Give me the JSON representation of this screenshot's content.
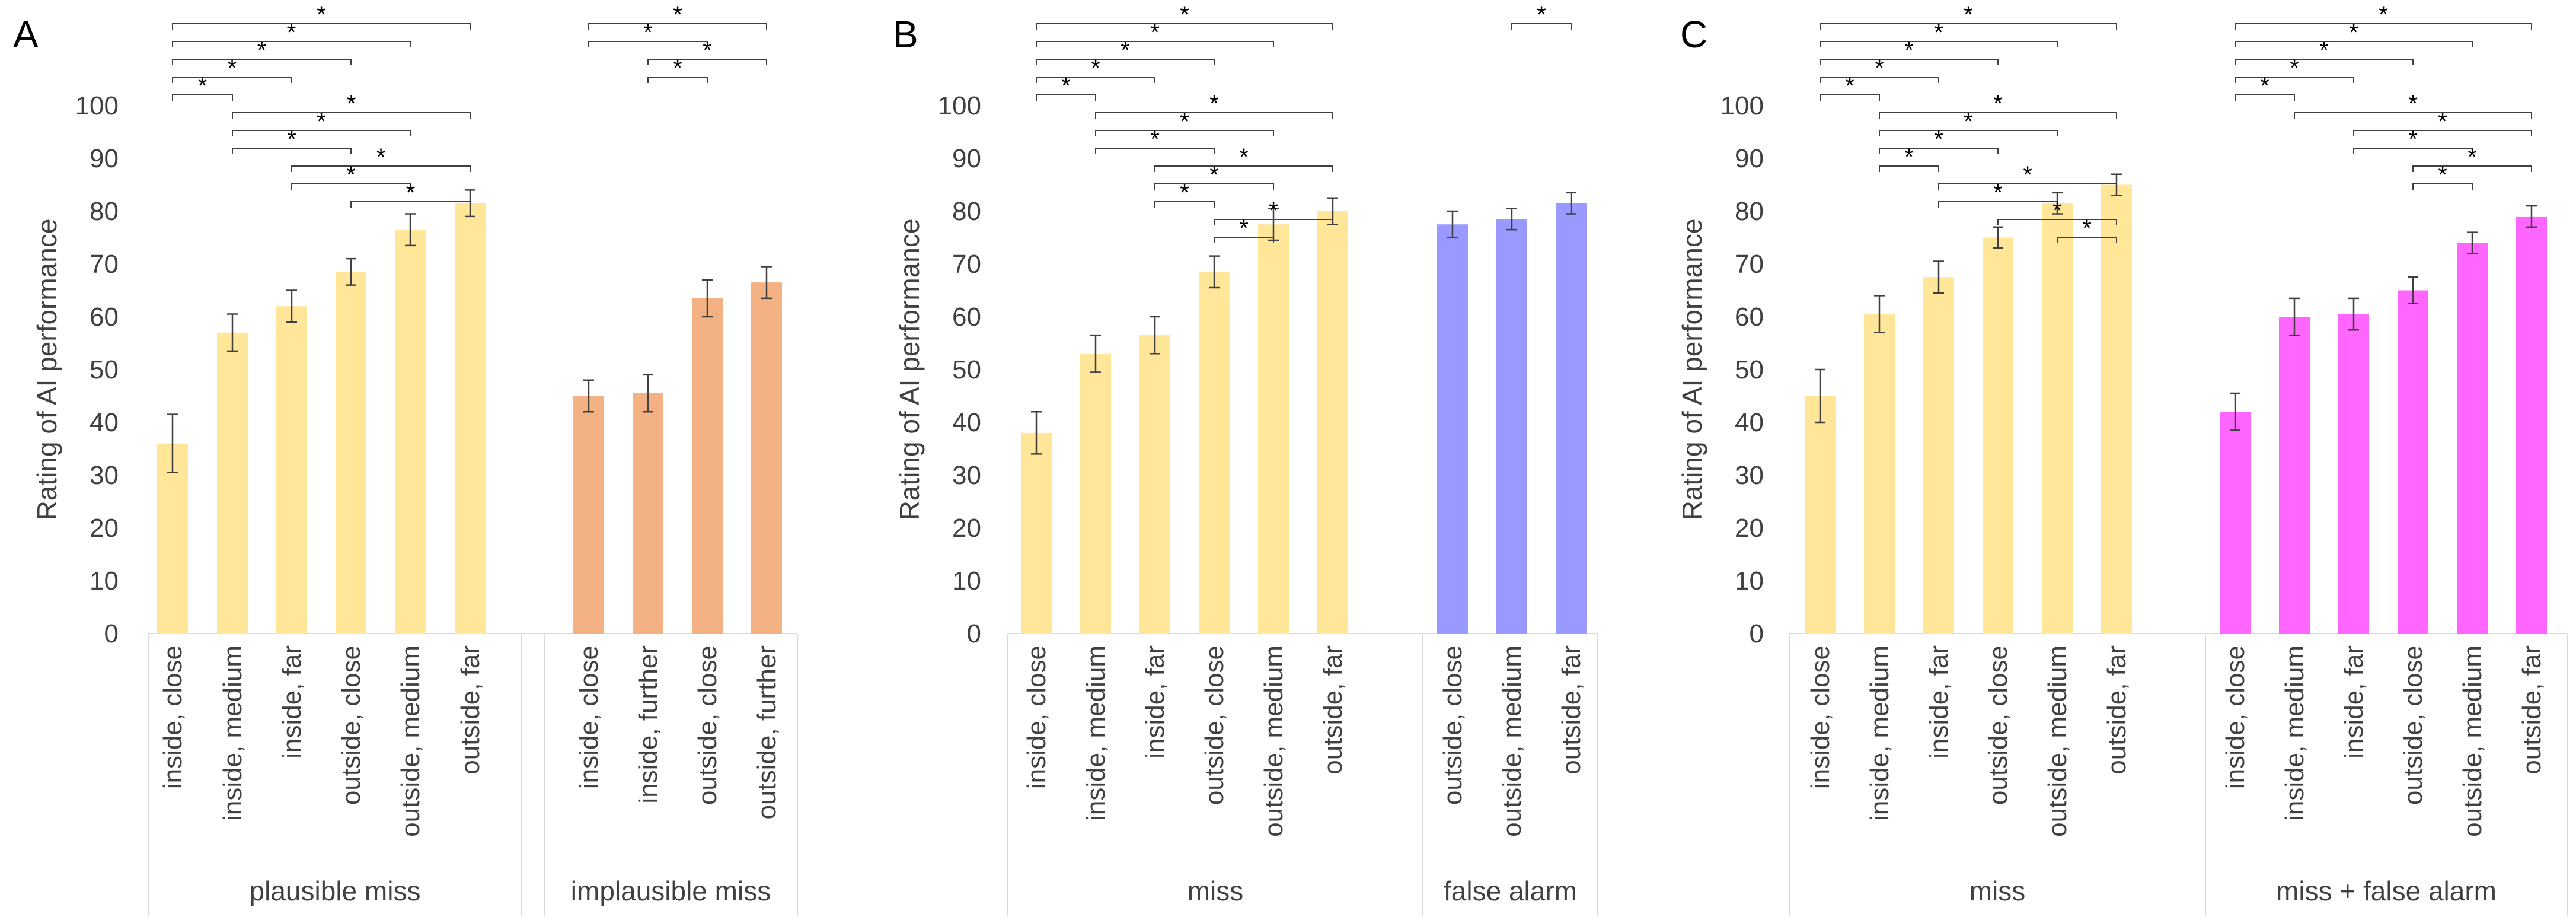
{
  "chart_data": [
    {
      "type": "bar",
      "panel": "A",
      "ylabel": "Rating of AI performance",
      "ylim": [
        0,
        100
      ],
      "yticks": [
        0,
        10,
        20,
        30,
        40,
        50,
        60,
        70,
        80,
        90,
        100
      ],
      "groups": [
        {
          "label": "plausible miss",
          "color": "#FFE699",
          "categories": [
            "inside, close",
            "inside, medium",
            "inside, far",
            "outside, close",
            "outside, medium",
            "outside, far"
          ],
          "values": [
            36,
            57,
            62,
            68.5,
            76.5,
            81.5
          ],
          "errors": [
            5.5,
            3.5,
            3,
            2.5,
            3,
            2.5
          ]
        },
        {
          "label": "implausible miss",
          "color": "#F4B183",
          "categories": [
            "inside, close",
            "inside, further",
            "outside, close",
            "outside, further"
          ],
          "values": [
            45,
            45.5,
            63.5,
            66.5
          ],
          "errors": [
            3,
            3.5,
            3.5,
            3
          ]
        }
      ],
      "significance": [
        {
          "from": [
            0,
            0
          ],
          "to": [
            0,
            5
          ],
          "label": "*"
        },
        {
          "from": [
            0,
            0
          ],
          "to": [
            0,
            4
          ],
          "label": "*"
        },
        {
          "from": [
            0,
            0
          ],
          "to": [
            0,
            3
          ],
          "label": "*"
        },
        {
          "from": [
            0,
            0
          ],
          "to": [
            0,
            2
          ],
          "label": "*"
        },
        {
          "from": [
            0,
            0
          ],
          "to": [
            0,
            1
          ],
          "label": "*"
        },
        {
          "from": [
            0,
            1
          ],
          "to": [
            0,
            5
          ],
          "label": "*"
        },
        {
          "from": [
            0,
            1
          ],
          "to": [
            0,
            4
          ],
          "label": "*"
        },
        {
          "from": [
            0,
            1
          ],
          "to": [
            0,
            3
          ],
          "label": "*"
        },
        {
          "from": [
            0,
            2
          ],
          "to": [
            0,
            5
          ],
          "label": "*"
        },
        {
          "from": [
            0,
            2
          ],
          "to": [
            0,
            4
          ],
          "label": "*"
        },
        {
          "from": [
            0,
            3
          ],
          "to": [
            0,
            5
          ],
          "label": "*"
        },
        {
          "from": [
            1,
            0
          ],
          "to": [
            1,
            3
          ],
          "label": "*"
        },
        {
          "from": [
            1,
            0
          ],
          "to": [
            1,
            2
          ],
          "label": "*"
        },
        {
          "from": [
            1,
            1
          ],
          "to": [
            1,
            3
          ],
          "label": "*"
        },
        {
          "from": [
            1,
            1
          ],
          "to": [
            1,
            2
          ],
          "label": "*"
        }
      ]
    },
    {
      "type": "bar",
      "panel": "B",
      "ylabel": "Rating of AI performance",
      "ylim": [
        0,
        100
      ],
      "yticks": [
        0,
        10,
        20,
        30,
        40,
        50,
        60,
        70,
        80,
        90,
        100
      ],
      "groups": [
        {
          "label": "miss",
          "color": "#FFE699",
          "categories": [
            "inside, close",
            "inside, medium",
            "inside, far",
            "outside, close",
            "outside, medium",
            "outside, far"
          ],
          "values": [
            38,
            53,
            56.5,
            68.5,
            77.5,
            80
          ],
          "errors": [
            4,
            3.5,
            3.5,
            3,
            3,
            2.5
          ]
        },
        {
          "label": "false alarm",
          "color": "#9999FF",
          "categories": [
            "outside, close",
            "outside, medium",
            "outside, far"
          ],
          "values": [
            77.5,
            78.5,
            81.5
          ],
          "errors": [
            2.5,
            2,
            2
          ]
        }
      ],
      "significance": [
        {
          "from": [
            0,
            0
          ],
          "to": [
            0,
            5
          ],
          "label": "*"
        },
        {
          "from": [
            0,
            0
          ],
          "to": [
            0,
            4
          ],
          "label": "*"
        },
        {
          "from": [
            0,
            0
          ],
          "to": [
            0,
            3
          ],
          "label": "*"
        },
        {
          "from": [
            0,
            0
          ],
          "to": [
            0,
            2
          ],
          "label": "*"
        },
        {
          "from": [
            0,
            0
          ],
          "to": [
            0,
            1
          ],
          "label": "*"
        },
        {
          "from": [
            0,
            1
          ],
          "to": [
            0,
            5
          ],
          "label": "*"
        },
        {
          "from": [
            0,
            1
          ],
          "to": [
            0,
            4
          ],
          "label": "*"
        },
        {
          "from": [
            0,
            1
          ],
          "to": [
            0,
            3
          ],
          "label": "*"
        },
        {
          "from": [
            0,
            2
          ],
          "to": [
            0,
            5
          ],
          "label": "*"
        },
        {
          "from": [
            0,
            2
          ],
          "to": [
            0,
            4
          ],
          "label": "*"
        },
        {
          "from": [
            0,
            2
          ],
          "to": [
            0,
            3
          ],
          "label": "*"
        },
        {
          "from": [
            0,
            3
          ],
          "to": [
            0,
            5
          ],
          "label": "*"
        },
        {
          "from": [
            0,
            3
          ],
          "to": [
            0,
            4
          ],
          "label": "*"
        },
        {
          "from": [
            1,
            1
          ],
          "to": [
            1,
            2
          ],
          "label": "*"
        }
      ]
    },
    {
      "type": "bar",
      "panel": "C",
      "ylabel": "Rating of AI performance",
      "ylim": [
        0,
        100
      ],
      "yticks": [
        0,
        10,
        20,
        30,
        40,
        50,
        60,
        70,
        80,
        90,
        100
      ],
      "groups": [
        {
          "label": "miss",
          "color": "#FFE699",
          "categories": [
            "inside, close",
            "inside, medium",
            "inside, far",
            "outside, close",
            "outside, medium",
            "outside, far"
          ],
          "values": [
            45,
            60.5,
            67.5,
            75,
            81.5,
            85
          ],
          "errors": [
            5,
            3.5,
            3,
            2,
            2,
            2
          ]
        },
        {
          "label": "miss + false alarm",
          "color": "#FF66FF",
          "categories": [
            "inside, close",
            "inside, medium",
            "inside, far",
            "outside, close",
            "outside, medium",
            "outside, far"
          ],
          "values": [
            42,
            60,
            60.5,
            65,
            74,
            79
          ],
          "errors": [
            3.5,
            3.5,
            3,
            2.5,
            2,
            2
          ]
        }
      ],
      "significance": [
        {
          "from": [
            0,
            0
          ],
          "to": [
            0,
            5
          ],
          "label": "*"
        },
        {
          "from": [
            0,
            0
          ],
          "to": [
            0,
            4
          ],
          "label": "*"
        },
        {
          "from": [
            0,
            0
          ],
          "to": [
            0,
            3
          ],
          "label": "*"
        },
        {
          "from": [
            0,
            0
          ],
          "to": [
            0,
            2
          ],
          "label": "*"
        },
        {
          "from": [
            0,
            0
          ],
          "to": [
            0,
            1
          ],
          "label": "*"
        },
        {
          "from": [
            0,
            1
          ],
          "to": [
            0,
            5
          ],
          "label": "*"
        },
        {
          "from": [
            0,
            1
          ],
          "to": [
            0,
            4
          ],
          "label": "*"
        },
        {
          "from": [
            0,
            1
          ],
          "to": [
            0,
            3
          ],
          "label": "*"
        },
        {
          "from": [
            0,
            1
          ],
          "to": [
            0,
            2
          ],
          "label": "*"
        },
        {
          "from": [
            0,
            2
          ],
          "to": [
            0,
            5
          ],
          "label": "*"
        },
        {
          "from": [
            0,
            2
          ],
          "to": [
            0,
            4
          ],
          "label": "*"
        },
        {
          "from": [
            0,
            3
          ],
          "to": [
            0,
            5
          ],
          "label": "*"
        },
        {
          "from": [
            0,
            4
          ],
          "to": [
            0,
            5
          ],
          "label": "*"
        },
        {
          "from": [
            1,
            0
          ],
          "to": [
            1,
            5
          ],
          "label": "*"
        },
        {
          "from": [
            1,
            0
          ],
          "to": [
            1,
            4
          ],
          "label": "*"
        },
        {
          "from": [
            1,
            0
          ],
          "to": [
            1,
            3
          ],
          "label": "*"
        },
        {
          "from": [
            1,
            0
          ],
          "to": [
            1,
            2
          ],
          "label": "*"
        },
        {
          "from": [
            1,
            0
          ],
          "to": [
            1,
            1
          ],
          "label": "*"
        },
        {
          "from": [
            1,
            1
          ],
          "to": [
            1,
            5
          ],
          "label": "*"
        },
        {
          "from": [
            1,
            2
          ],
          "to": [
            1,
            5
          ],
          "label": "*"
        },
        {
          "from": [
            1,
            2
          ],
          "to": [
            1,
            4
          ],
          "label": "*"
        },
        {
          "from": [
            1,
            3
          ],
          "to": [
            1,
            5
          ],
          "label": "*"
        },
        {
          "from": [
            1,
            3
          ],
          "to": [
            1,
            4
          ],
          "label": "*"
        }
      ]
    }
  ]
}
